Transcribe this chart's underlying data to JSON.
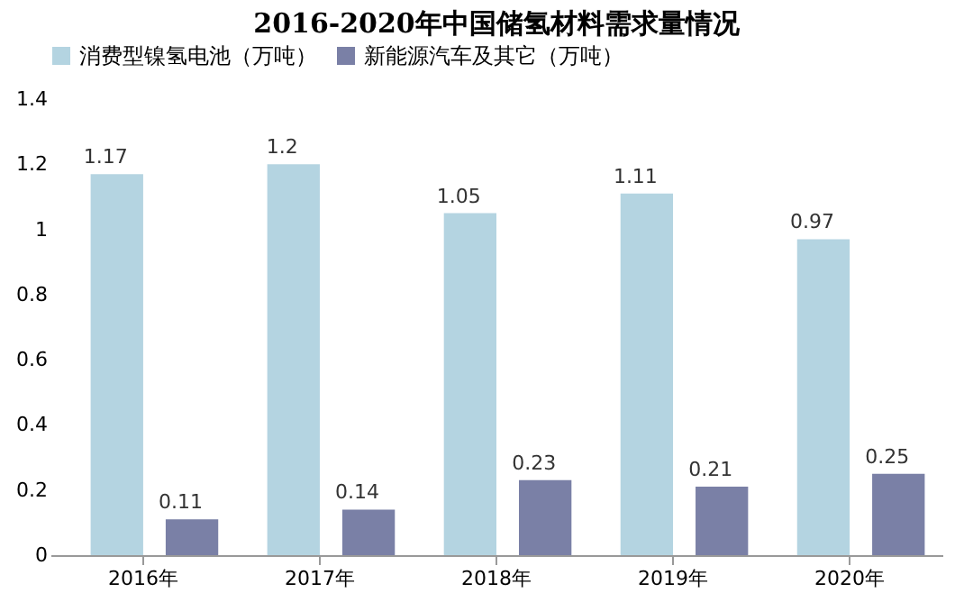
{
  "chart_data": {
    "type": "bar",
    "title": "2016-2020年中国储氢材料需求量情况",
    "categories": [
      "2016年",
      "2017年",
      "2018年",
      "2019年",
      "2020年"
    ],
    "series": [
      {
        "name": "消费型镍氢电池（万吨）",
        "color": "#b4d4e1",
        "values": [
          1.17,
          1.2,
          1.05,
          1.11,
          0.97
        ]
      },
      {
        "name": "新能源汽车及其它（万吨）",
        "color": "#7a80a6",
        "values": [
          0.11,
          0.14,
          0.23,
          0.21,
          0.25
        ]
      }
    ],
    "ylim": [
      0,
      1.4
    ],
    "yticks": [
      0,
      0.2,
      0.4,
      0.6,
      0.8,
      1,
      1.2,
      1.4
    ],
    "data_labels": true,
    "legend": "top",
    "grid": false
  }
}
